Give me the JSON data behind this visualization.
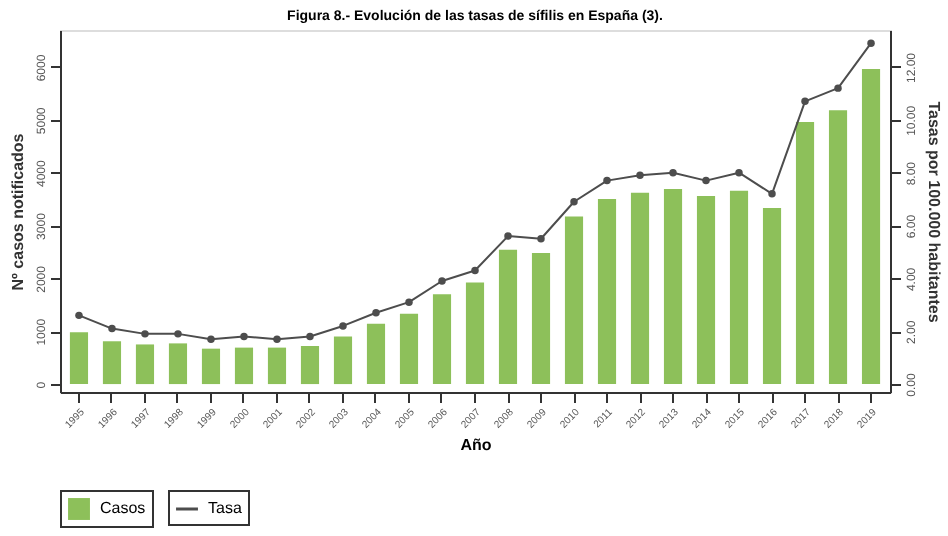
{
  "chart_data": {
    "type": "bar",
    "title": "Figura 8.- Evolución de las tasas de sífilis en España (3).",
    "xlabel": "Año",
    "ylabel": "Nº casos notificados",
    "y2label": "Tasas por 100.000 habitantes",
    "categories": [
      "1995",
      "1996",
      "1997",
      "1998",
      "1999",
      "2000",
      "2001",
      "2002",
      "2003",
      "2004",
      "2005",
      "2006",
      "2007",
      "2008",
      "2009",
      "2010",
      "2011",
      "2012",
      "2013",
      "2014",
      "2015",
      "2016",
      "2017",
      "2018",
      "2019"
    ],
    "series": [
      {
        "name": "Casos",
        "color": "#8dc05a",
        "values": [
          980,
          810,
          750,
          770,
          670,
          690,
          690,
          720,
          900,
          1140,
          1330,
          1700,
          1920,
          2540,
          2480,
          3170,
          3500,
          3620,
          3690,
          3560,
          3660,
          3330,
          4960,
          5180,
          5960
        ]
      },
      {
        "name": "Tasa",
        "type": "line",
        "axis": "y2",
        "color": "#4d4d4d",
        "marker": "circle",
        "values": [
          2.6,
          2.1,
          1.9,
          1.9,
          1.7,
          1.8,
          1.7,
          1.8,
          2.2,
          2.7,
          3.1,
          3.9,
          4.3,
          5.6,
          5.5,
          6.9,
          7.7,
          7.9,
          8.0,
          7.7,
          8.0,
          7.2,
          10.7,
          11.2,
          12.9
        ]
      }
    ],
    "ylim": [
      -150,
      6700
    ],
    "yticks": [
      0,
      1000,
      2000,
      3000,
      4000,
      5000,
      6000
    ],
    "y2lim": [
      -0.3,
      13.4
    ],
    "y2ticks": [
      {
        "value": 0,
        "label": "0.00"
      },
      {
        "value": 2,
        "label": "2.00"
      },
      {
        "value": 4,
        "label": "4.00"
      },
      {
        "value": 6,
        "label": "6.00"
      },
      {
        "value": 8,
        "label": "8.00"
      },
      {
        "value": 10,
        "label": "10.00"
      },
      {
        "value": 12,
        "label": "12.00"
      }
    ],
    "grid": false,
    "legend": "bottom"
  }
}
